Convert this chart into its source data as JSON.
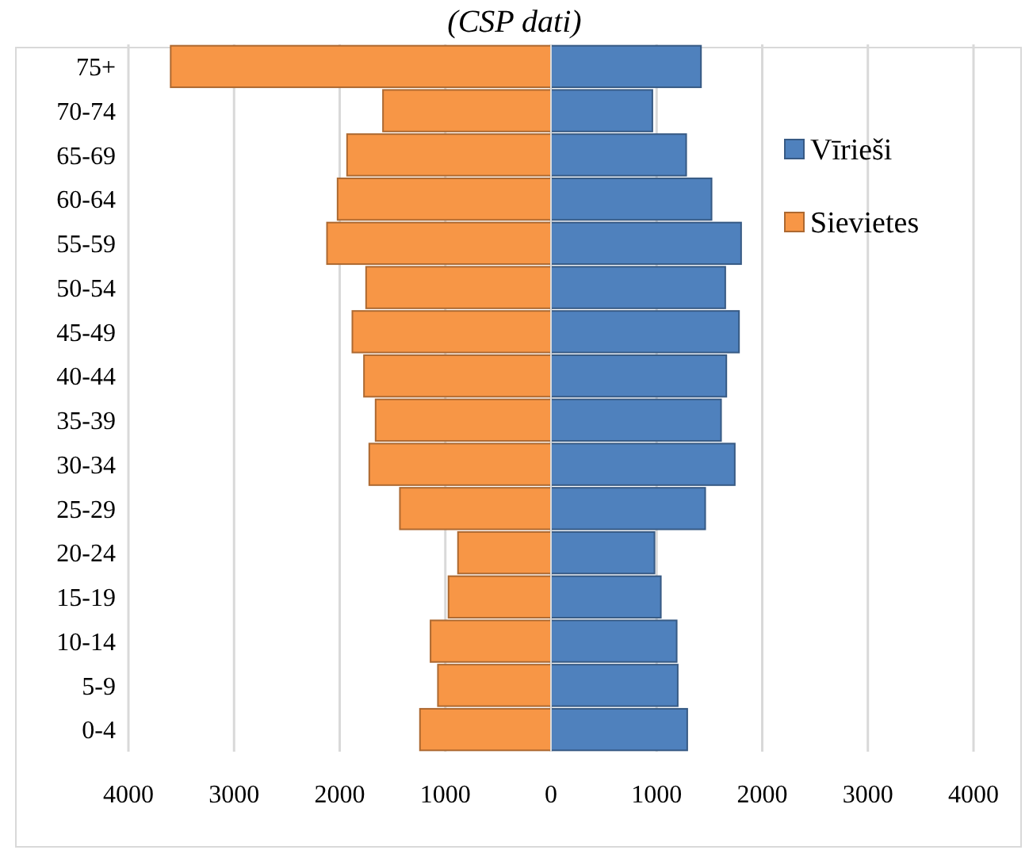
{
  "chart_data": {
    "type": "bar",
    "orientation": "horizontal",
    "stacked": true,
    "title": "(CSP dati)",
    "categories": [
      "75+",
      "70-74",
      "65-69",
      "60-64",
      "55-59",
      "50-54",
      "45-49",
      "40-44",
      "35-39",
      "30-34",
      "25-29",
      "20-24",
      "15-19",
      "10-14",
      "5-9",
      "0-4"
    ],
    "series": [
      {
        "name": "Vīrieši",
        "color": "#4f81bd",
        "values": [
          1420,
          960,
          1280,
          1520,
          1800,
          1650,
          1780,
          1660,
          1610,
          1740,
          1460,
          980,
          1040,
          1190,
          1200,
          1290
        ]
      },
      {
        "name": "Sievietes",
        "color": "#f79646",
        "values": [
          -3600,
          -1590,
          -1930,
          -2020,
          -2120,
          -1750,
          -1880,
          -1770,
          -1660,
          -1720,
          -1430,
          -880,
          -970,
          -1140,
          -1070,
          -1240
        ]
      }
    ],
    "xlim": [
      -4000,
      4000
    ],
    "xticks": [
      {
        "value": -4000,
        "label": "4000"
      },
      {
        "value": -3000,
        "label": "3000"
      },
      {
        "value": -2000,
        "label": "2000"
      },
      {
        "value": -1000,
        "label": "1000"
      },
      0,
      1000,
      2000,
      3000,
      4000
    ],
    "grid": "x",
    "legend": "right"
  }
}
